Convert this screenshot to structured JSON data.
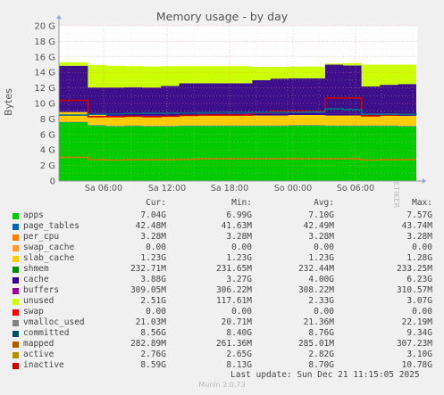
{
  "chart_data": {
    "type": "area",
    "title": "Memory usage - by day",
    "ylabel": "Bytes",
    "side_label": "RRDTOOL / TOBI OETIKER",
    "ylim": [
      0,
      20
    ],
    "y_ticks": [
      "0",
      "2 G",
      "4 G",
      "6 G",
      "8 G",
      "10 G",
      "12 G",
      "14 G",
      "16 G",
      "18 G",
      "20 G"
    ],
    "x_ticks": [
      "Sa 06:00",
      "Sa 12:00",
      "Sa 18:00",
      "So 00:00",
      "So 06:00"
    ],
    "grid": true,
    "stacked_segments": [
      {
        "name": "apps",
        "color": "#00cc00",
        "values": [
          7.55,
          7.15,
          7.05,
          7.1,
          7.05,
          7.05,
          7.1,
          7.1,
          7.1,
          7.1,
          7.1,
          7.1,
          7.15,
          7.15,
          7.1,
          7.1,
          7.1,
          7.1,
          7.05,
          7.05
        ]
      },
      {
        "name": "page_tables",
        "color": "#0066b3",
        "values": [
          0.05,
          0.05,
          0.05,
          0.05,
          0.05,
          0.05,
          0.05,
          0.05,
          0.05,
          0.05,
          0.05,
          0.05,
          0.05,
          0.05,
          0.05,
          0.05,
          0.05,
          0.05,
          0.05,
          0.05
        ]
      },
      {
        "name": "per_cpu",
        "color": "#ff8000",
        "values": [
          0.05,
          0.05,
          0.05,
          0.05,
          0.05,
          0.05,
          0.05,
          0.05,
          0.05,
          0.05,
          0.05,
          0.05,
          0.05,
          0.05,
          0.05,
          0.05,
          0.05,
          0.05,
          0.05,
          0.05
        ]
      },
      {
        "name": "slab_cache",
        "color": "#ffcc00",
        "values": [
          1.25,
          1.25,
          1.25,
          1.25,
          1.25,
          1.25,
          1.25,
          1.25,
          1.25,
          1.25,
          1.25,
          1.25,
          1.25,
          1.25,
          1.25,
          1.25,
          1.25,
          1.25,
          1.25,
          1.25
        ]
      },
      {
        "name": "shmem",
        "color": "#330099",
        "values": [
          0.25,
          0.25,
          0.25,
          0.25,
          0.25,
          0.25,
          0.25,
          0.25,
          0.25,
          0.25,
          0.25,
          0.25,
          0.25,
          0.25,
          0.25,
          0.25,
          0.25,
          0.25,
          0.25,
          0.25
        ]
      },
      {
        "name": "cache",
        "color": "#3d0f8a",
        "values": [
          5.7,
          3.3,
          3.4,
          3.4,
          3.4,
          3.6,
          3.9,
          3.9,
          3.9,
          3.9,
          4.3,
          4.5,
          4.5,
          4.5,
          6.3,
          6.2,
          3.5,
          3.7,
          3.85,
          3.9
        ]
      },
      {
        "name": "unused",
        "color": "#ccff00",
        "values": [
          0.45,
          2.9,
          2.8,
          2.7,
          2.7,
          2.55,
          2.2,
          2.2,
          2.2,
          2.2,
          1.7,
          1.5,
          1.5,
          1.5,
          0.15,
          0.3,
          2.8,
          2.6,
          2.5,
          2.5
        ]
      }
    ],
    "line_series": [
      {
        "name": "inactive",
        "color": "#cc0000",
        "values": [
          10.4,
          8.3,
          8.3,
          8.35,
          8.3,
          8.35,
          8.45,
          8.5,
          8.5,
          8.5,
          8.8,
          9.0,
          9.0,
          9.0,
          10.7,
          10.7,
          8.4,
          8.5,
          8.6,
          8.6
        ]
      },
      {
        "name": "active",
        "color": "#cc7a00",
        "values": [
          3.05,
          2.75,
          2.7,
          2.75,
          2.75,
          2.75,
          2.8,
          2.85,
          2.85,
          2.85,
          2.85,
          2.85,
          2.85,
          2.85,
          2.85,
          2.85,
          2.7,
          2.75,
          2.75,
          2.75
        ]
      },
      {
        "name": "committed",
        "color": "#006e8c",
        "values": [
          8.5,
          8.6,
          8.65,
          8.7,
          8.75,
          8.75,
          8.75,
          8.8,
          8.85,
          8.85,
          8.85,
          8.85,
          8.85,
          8.9,
          9.3,
          9.2,
          8.6,
          8.6,
          8.6,
          8.56
        ]
      }
    ]
  },
  "legend": {
    "headers": [
      "Cur:",
      "Min:",
      "Avg:",
      "Max:"
    ],
    "rows": [
      {
        "name": "apps",
        "color": "#00cc00",
        "cur": "7.04G",
        "min": "6.99G",
        "avg": "7.10G",
        "max": "7.57G"
      },
      {
        "name": "page_tables",
        "color": "#0066b3",
        "cur": "42.48M",
        "min": "41.63M",
        "avg": "42.49M",
        "max": "43.74M"
      },
      {
        "name": "per_cpu",
        "color": "#ff8000",
        "cur": "3.28M",
        "min": "3.28M",
        "avg": "3.28M",
        "max": "3.28M"
      },
      {
        "name": "swap_cache",
        "color": "#ff9933",
        "cur": "0.00",
        "min": "0.00",
        "avg": "0.00",
        "max": "0.00"
      },
      {
        "name": "slab_cache",
        "color": "#ffcc00",
        "cur": "1.23G",
        "min": "1.23G",
        "avg": "1.23G",
        "max": "1.28G"
      },
      {
        "name": "shmem",
        "color": "#008f00",
        "cur": "232.71M",
        "min": "231.65M",
        "avg": "232.44M",
        "max": "233.25M"
      },
      {
        "name": "cache",
        "color": "#330099",
        "cur": "3.88G",
        "min": "3.27G",
        "avg": "4.00G",
        "max": "6.23G"
      },
      {
        "name": "buffers",
        "color": "#990099",
        "cur": "309.05M",
        "min": "306.22M",
        "avg": "308.22M",
        "max": "310.57M"
      },
      {
        "name": "unused",
        "color": "#ccff00",
        "cur": "2.51G",
        "min": "117.61M",
        "avg": "2.33G",
        "max": "3.07G"
      },
      {
        "name": "swap",
        "color": "#ff0000",
        "cur": "0.00",
        "min": "0.00",
        "avg": "0.00",
        "max": "0.00"
      },
      {
        "name": "vmalloc_used",
        "color": "#808080",
        "cur": "21.03M",
        "min": "20.71M",
        "avg": "21.36M",
        "max": "22.19M"
      },
      {
        "name": "committed",
        "color": "#004d66",
        "cur": "8.56G",
        "min": "8.40G",
        "avg": "8.76G",
        "max": "9.34G"
      },
      {
        "name": "mapped",
        "color": "#b35a00",
        "cur": "282.89M",
        "min": "261.36M",
        "avg": "285.01M",
        "max": "307.23M"
      },
      {
        "name": "active",
        "color": "#b38f00",
        "cur": "2.76G",
        "min": "2.65G",
        "avg": "2.82G",
        "max": "3.10G"
      },
      {
        "name": "inactive",
        "color": "#cc0000",
        "cur": "8.59G",
        "min": "8.13G",
        "avg": "8.70G",
        "max": "10.78G"
      }
    ]
  },
  "footer": {
    "last_update": "Last update: Sun Dec 21 11:15:05 2025",
    "munin": "Munin 2.0.73"
  }
}
